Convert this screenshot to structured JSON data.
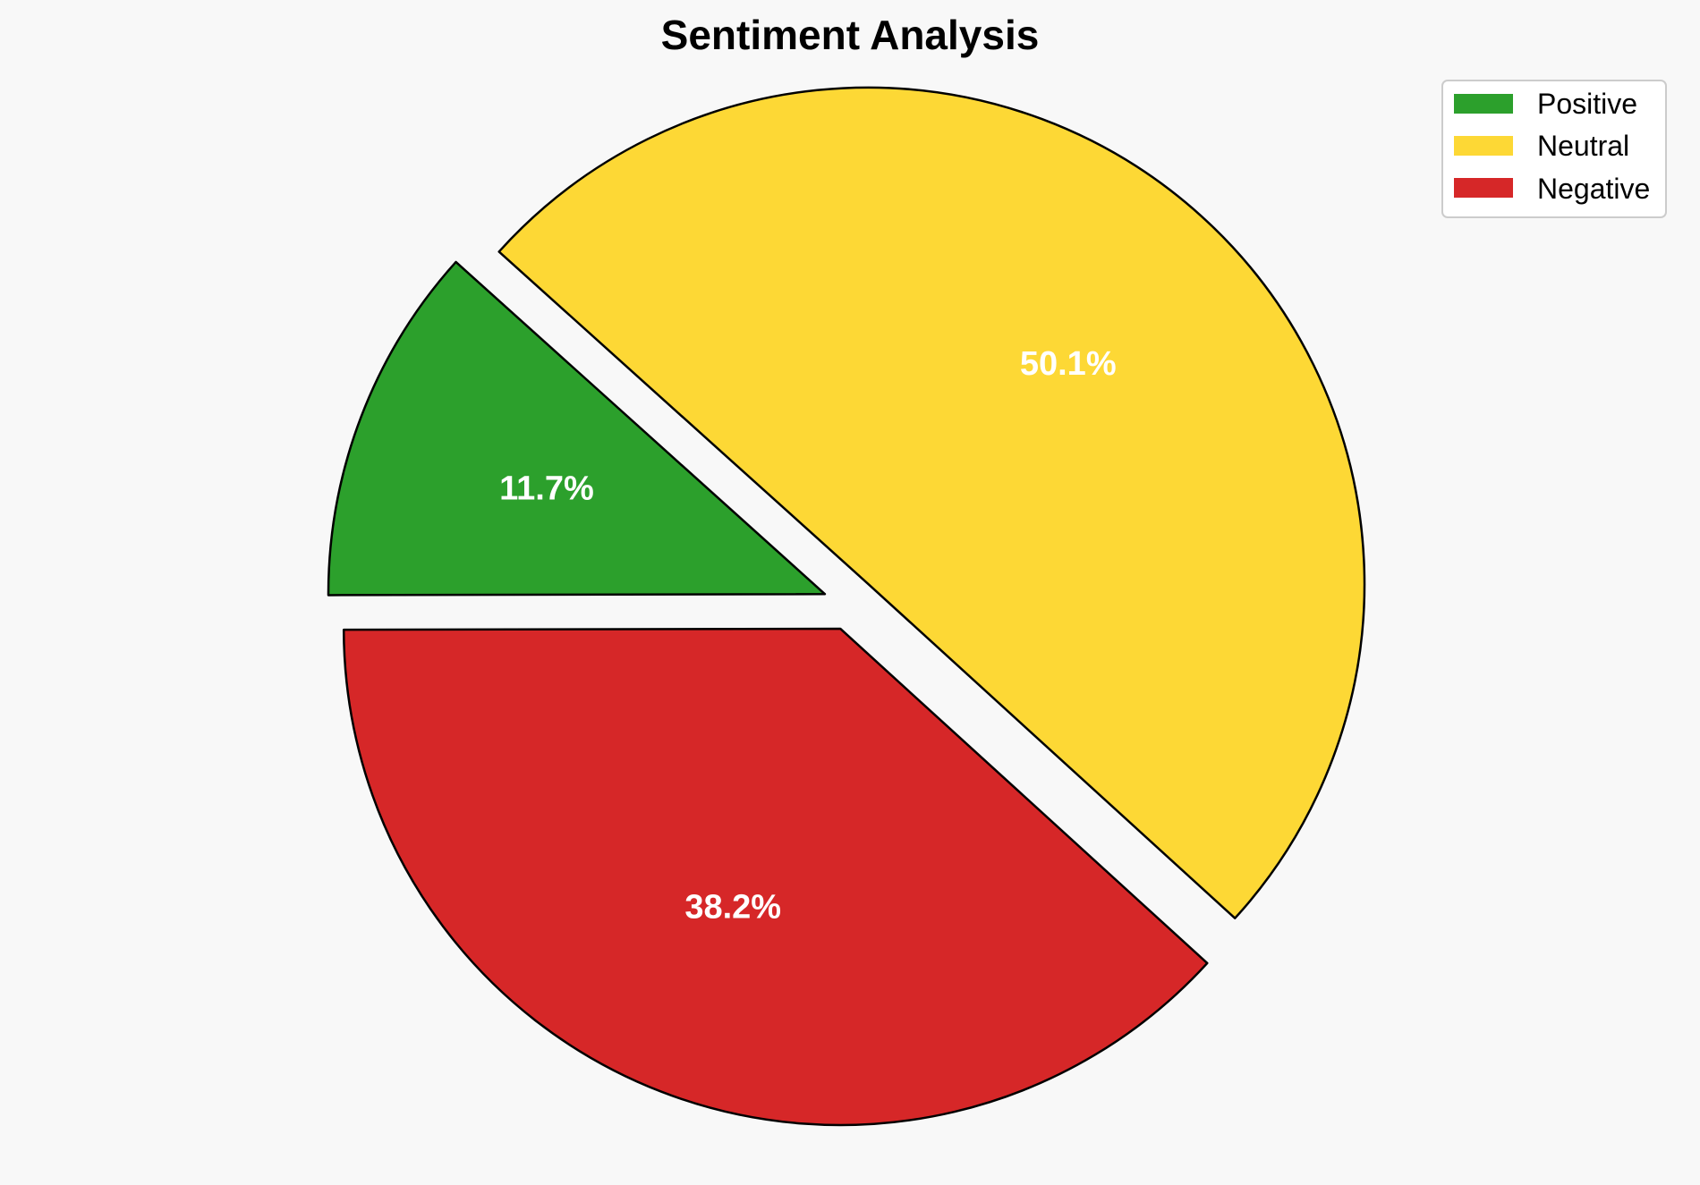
{
  "chart_data": {
    "type": "pie",
    "title": "Sentiment Analysis",
    "slices": [
      {
        "label": "Positive",
        "value": 11.7,
        "display": "11.7%",
        "color": "#2ca02c"
      },
      {
        "label": "Negative",
        "value": 38.2,
        "display": "38.2%",
        "color": "#d62728"
      },
      {
        "label": "Neutral",
        "value": 50.1,
        "display": "50.1%",
        "color": "#fdd835"
      }
    ],
    "legend": {
      "placement": "top-right",
      "entries": [
        {
          "label": "Positive",
          "color": "#2ca02c"
        },
        {
          "label": "Neutral",
          "color": "#fdd835"
        },
        {
          "label": "Negative",
          "color": "#d62728"
        }
      ]
    },
    "colors": {
      "background": "#f8f8f8",
      "edge": "#000000",
      "label_text": "#ffffff"
    }
  }
}
